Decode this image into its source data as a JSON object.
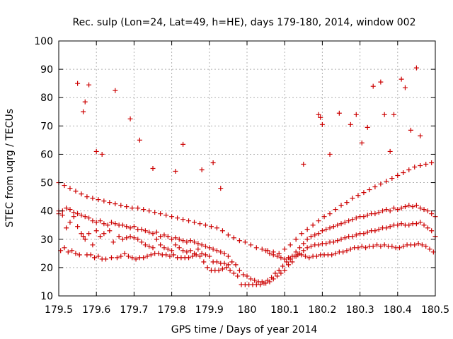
{
  "chart_data": {
    "type": "scatter",
    "title": "Rec. sulp (Lon=24, Lat=49, h=HE), days 179-180, 2014, window 002",
    "xlabel": "GPS time / Days of year 2014",
    "ylabel": "STEC from uqrg / TECUs",
    "xlim": [
      179.5,
      180.5
    ],
    "ylim": [
      10,
      100
    ],
    "xticks": [
      179.5,
      179.6,
      179.7,
      179.8,
      179.9,
      180,
      180.1,
      180.2,
      180.3,
      180.4,
      180.5
    ],
    "xtick_labels": [
      "179.5",
      "179.6",
      "179.7",
      "179.8",
      "179.9",
      "180",
      "180.1",
      "180.2",
      "180.3",
      "180.4",
      "180.5"
    ],
    "yticks": [
      10,
      20,
      30,
      40,
      50,
      60,
      70,
      80,
      90,
      100
    ],
    "ytick_labels": [
      "10",
      "20",
      "30",
      "40",
      "50",
      "60",
      "70",
      "80",
      "90",
      "100"
    ],
    "grid": true,
    "legend": "none",
    "marker": "plus",
    "color": "#cc0000",
    "x": [
      179.5,
      179.51,
      179.52,
      179.53,
      179.54,
      179.55,
      179.56,
      179.565,
      179.57,
      179.58,
      179.59,
      179.6,
      179.61,
      179.62,
      179.635,
      179.645,
      179.66,
      179.67,
      179.68,
      179.69,
      179.7,
      179.71,
      179.72,
      179.73,
      179.74,
      179.75,
      179.76,
      179.77,
      179.78,
      179.79,
      179.8,
      179.81,
      179.82,
      179.83,
      179.84,
      179.85,
      179.86,
      179.87,
      179.88,
      179.89,
      179.9,
      179.91,
      179.92,
      179.93,
      179.94,
      179.95,
      179.96,
      179.97,
      179.98,
      179.99,
      180.0,
      180.01,
      180.02,
      180.03,
      180.04,
      180.05,
      180.06,
      180.07,
      180.08,
      180.09,
      180.1,
      180.11,
      180.12,
      180.13,
      180.14,
      180.15,
      180.16,
      180.17,
      180.18,
      180.19,
      180.2,
      180.21,
      180.22,
      180.23,
      180.24,
      180.25,
      180.26,
      180.27,
      180.28,
      180.29,
      180.3,
      180.31,
      180.32,
      180.33,
      180.34,
      180.35,
      180.36,
      180.37,
      180.38,
      180.39,
      180.4,
      180.41,
      180.42,
      180.43,
      180.44,
      180.45,
      180.46,
      180.47,
      180.48,
      180.49,
      180.5,
      179.505,
      179.515,
      179.525,
      179.535,
      179.545,
      179.555,
      179.575,
      179.585,
      179.595,
      179.605,
      179.615,
      179.625,
      179.64,
      179.655,
      179.665,
      179.675,
      179.685,
      179.695,
      179.705,
      179.715,
      179.725,
      179.735,
      179.745,
      179.755,
      179.765,
      179.775,
      179.785,
      179.795,
      179.805,
      179.815,
      179.825,
      179.835,
      179.845,
      179.855,
      179.865,
      179.875,
      179.885,
      179.895,
      179.905,
      179.915,
      179.925,
      179.935,
      179.945,
      179.955,
      179.965,
      179.975,
      179.985,
      179.995,
      180.005,
      180.015,
      180.025,
      180.035,
      180.045,
      180.055,
      180.065,
      180.075,
      180.085,
      180.095,
      180.105,
      180.115,
      180.125,
      180.135,
      180.145,
      180.155,
      180.165,
      180.175,
      180.185,
      180.195,
      180.205,
      180.215,
      180.225,
      180.235,
      180.245,
      180.255,
      180.265,
      180.275,
      180.285,
      180.295,
      180.305,
      180.315,
      180.325,
      180.335,
      180.345,
      180.355,
      180.365,
      180.375,
      180.385,
      180.395,
      180.405,
      180.415,
      180.425,
      180.435,
      180.445,
      180.455,
      180.465,
      180.475,
      180.485,
      180.495,
      179.5,
      179.51,
      179.52,
      179.53,
      179.54,
      179.55,
      179.56,
      179.57,
      179.58,
      179.59,
      179.6,
      179.61,
      179.62,
      179.63,
      179.64,
      179.65,
      179.66,
      179.67,
      179.68,
      179.69,
      179.7,
      179.71,
      179.72,
      179.73,
      179.74,
      179.75,
      179.76,
      179.77,
      179.78,
      179.79,
      179.8,
      179.81,
      179.82,
      179.83,
      179.84,
      179.85,
      179.86,
      179.87,
      179.88,
      179.89,
      179.9,
      179.91,
      179.92,
      179.93,
      179.94,
      179.95,
      180.05,
      180.06,
      180.07,
      180.08,
      180.09,
      180.1,
      180.11,
      180.12,
      180.13,
      180.14,
      180.15,
      180.16,
      180.17,
      180.18,
      180.19,
      180.2,
      180.21,
      180.22,
      180.23,
      180.24,
      180.25,
      180.26,
      180.27,
      180.28,
      180.29,
      180.3,
      180.31,
      180.32,
      180.33,
      180.34,
      180.35,
      180.36,
      180.37,
      180.38,
      180.39,
      180.4,
      180.41,
      180.42,
      180.43,
      180.44,
      180.45,
      180.46,
      180.47,
      180.48,
      180.49,
      180.5,
      179.5,
      179.515,
      179.53,
      179.545,
      179.56,
      179.575,
      179.59,
      179.605,
      179.62,
      179.635,
      179.65,
      179.665,
      179.68,
      179.695,
      179.71,
      179.725,
      179.74,
      179.755,
      179.77,
      179.785,
      179.8,
      179.815,
      179.83,
      179.845,
      179.86,
      179.875,
      179.89,
      179.905,
      179.92,
      179.935,
      179.95,
      179.965,
      179.98,
      179.995,
      180.01,
      180.025,
      180.04,
      180.055,
      180.07,
      180.085,
      180.1,
      180.115,
      180.13,
      180.145,
      180.16,
      180.175,
      180.19,
      180.205,
      180.22,
      180.235,
      180.25,
      180.265,
      180.28,
      180.295,
      180.31,
      180.325,
      180.34,
      180.355,
      180.37,
      180.385,
      180.4,
      180.415,
      180.43,
      180.445,
      180.46,
      180.475,
      180.49,
      179.55,
      179.565,
      179.57,
      179.58,
      179.6,
      179.615,
      179.65,
      179.69,
      179.715,
      179.75,
      179.81,
      179.83,
      179.88,
      179.91,
      179.93,
      180.15,
      180.19,
      180.195,
      180.2,
      180.22,
      180.245,
      180.275,
      180.29,
      180.305,
      180.32,
      180.335,
      180.355,
      180.365,
      180.38,
      180.39,
      180.41,
      180.42,
      180.435,
      180.45,
      180.46
    ],
    "y": [
      40,
      38.5,
      34,
      36,
      38,
      34.5,
      32,
      31,
      30,
      32,
      28,
      33,
      31,
      32,
      33,
      29,
      31,
      30,
      30.5,
      31,
      30.5,
      30,
      29,
      28,
      27.5,
      27,
      30,
      28,
      27,
      26.5,
      26,
      28,
      27,
      26,
      25.5,
      26,
      25,
      26.5,
      25,
      24.5,
      24,
      22,
      22,
      21.5,
      21.5,
      21,
      22,
      21,
      19,
      17.5,
      17,
      16,
      15.5,
      15,
      15,
      14.5,
      15,
      16,
      17,
      18,
      19,
      21,
      22,
      24,
      25,
      26,
      27,
      27.5,
      28,
      28,
      28.5,
      28.5,
      29,
      29,
      29.5,
      30,
      30.5,
      31,
      31,
      31.5,
      32,
      32,
      32.5,
      33,
      33,
      33.5,
      34,
      34,
      34.5,
      35,
      35,
      35.5,
      35,
      35,
      35.5,
      35.5,
      36,
      35,
      34,
      33,
      31,
      26,
      27,
      25.5,
      26,
      25,
      24.5,
      24.5,
      24.5,
      23.5,
      24,
      23,
      23,
      23.5,
      23.5,
      24,
      25,
      24,
      23.5,
      23,
      23.5,
      23.5,
      24,
      24.5,
      25,
      25,
      24.5,
      24.5,
      24,
      24.5,
      23.5,
      23.5,
      23.5,
      23.5,
      24,
      24.5,
      24,
      22,
      20,
      19,
      19,
      19,
      19.5,
      20,
      19,
      18,
      17,
      14,
      14,
      14,
      14,
      14,
      14,
      14.5,
      15.5,
      16.5,
      18,
      19,
      20.5,
      22,
      23,
      24,
      24.5,
      24.5,
      24,
      23.5,
      24,
      24,
      24.5,
      24.5,
      24.5,
      24.5,
      25,
      25.5,
      25.5,
      26,
      26.5,
      27,
      27,
      27.5,
      27,
      27.5,
      27.5,
      28,
      27.5,
      28,
      27.5,
      27.5,
      27,
      27,
      27.5,
      28,
      28,
      28,
      28.5,
      28,
      27.5,
      26.5,
      25.5,
      39,
      40,
      41,
      40.5,
      39.5,
      39,
      38.5,
      38,
      37.5,
      36.5,
      36,
      36.5,
      35.5,
      35,
      36,
      35.5,
      35,
      35,
      34.5,
      34,
      34.5,
      33.5,
      33.5,
      33,
      32.5,
      32,
      32.5,
      31,
      31.5,
      31,
      30,
      30.5,
      30,
      29.5,
      29,
      29.5,
      29,
      28.5,
      28,
      27.5,
      27,
      26.5,
      26,
      25.5,
      25,
      24,
      26,
      25,
      24.5,
      24,
      23.5,
      23,
      23.5,
      24,
      25.5,
      27,
      28.5,
      30,
      31,
      31.5,
      32,
      33,
      33.5,
      34,
      34.5,
      35,
      35.5,
      36,
      36.5,
      37,
      37.5,
      38,
      38,
      38.5,
      39,
      39,
      39.5,
      40,
      40.5,
      40,
      41,
      40.5,
      41,
      41.5,
      42,
      41.5,
      42,
      41,
      40.5,
      40,
      39,
      38,
      50,
      49,
      48,
      47,
      46,
      45,
      44.5,
      44,
      43.5,
      43,
      42.5,
      42,
      41.5,
      41,
      41,
      40.5,
      40,
      39.5,
      39,
      38.5,
      38,
      37.5,
      37,
      36.5,
      36,
      35.5,
      35,
      34.5,
      34,
      33,
      31.5,
      30.5,
      29.5,
      29,
      28,
      27,
      26.5,
      26,
      25.5,
      25,
      26.5,
      28,
      30,
      32,
      33.5,
      35,
      36.5,
      38,
      39,
      40.5,
      42,
      43,
      44.5,
      45.5,
      46.5,
      47.5,
      48.5,
      49.5,
      50.5,
      51.5,
      52.5,
      53.5,
      54.5,
      55.5,
      56,
      56.5,
      57,
      85,
      75,
      78.5,
      84.5,
      61,
      60,
      82.5,
      72.5,
      65,
      55,
      54,
      63.5,
      54.5,
      57,
      48,
      56.5,
      74,
      73,
      70.5,
      60,
      74.5,
      70.5,
      74,
      64,
      69.5,
      84,
      85.5,
      74,
      61,
      74,
      86.5,
      83.5,
      68.5,
      90.5,
      66.5
    ]
  }
}
